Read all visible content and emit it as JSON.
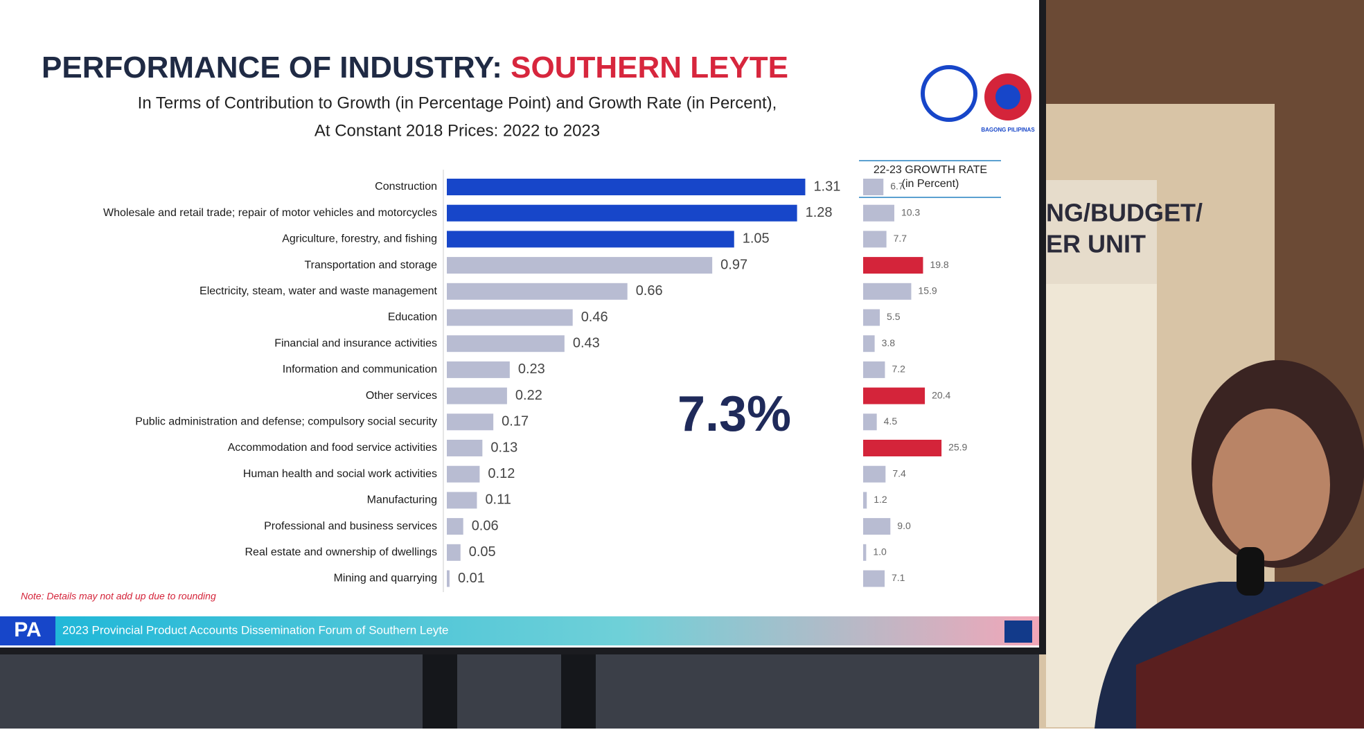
{
  "chart_data": [
    {
      "type": "bar",
      "orientation": "horizontal",
      "title": "PERFORMANCE OF INDUSTRY: ",
      "title_highlight": "SOUTHERN LEYTE",
      "subtitle": [
        "In Terms of Contribution to Growth (in Percentage Point) and Growth Rate (in Percent),",
        "At Constant 2018 Prices: 2022 to 2023"
      ],
      "categories": [
        "Construction",
        "Wholesale and retail trade; repair of motor vehicles and motorcycles",
        "Agriculture, forestry, and fishing",
        "Transportation and storage",
        "Electricity, steam, water and waste management",
        "Education",
        "Financial and insurance activities",
        "Information and communication",
        "Other services",
        "Public administration and defense; compulsory social security",
        "Accommodation and food service activities",
        "Human health and social work activities",
        "Manufacturing",
        "Professional and business services",
        "Real estate and ownership of dwellings",
        "Mining and quarrying"
      ],
      "values": [
        1.31,
        1.28,
        1.05,
        0.97,
        0.66,
        0.46,
        0.43,
        0.23,
        0.22,
        0.17,
        0.13,
        0.12,
        0.11,
        0.06,
        0.05,
        0.01
      ],
      "colors": [
        "#1746c9",
        "#1746c9",
        "#1746c9",
        "#b8bcd2",
        "#b8bcd2",
        "#b8bcd2",
        "#b8bcd2",
        "#b8bcd2",
        "#b8bcd2",
        "#b8bcd2",
        "#b8bcd2",
        "#b8bcd2",
        "#b8bcd2",
        "#b8bcd2",
        "#b8bcd2",
        "#b8bcd2"
      ],
      "xlim": [
        0,
        1.4
      ],
      "annotation": "7.3%",
      "note": "Note: Details may not add up due to rounding"
    },
    {
      "type": "bar",
      "orientation": "horizontal",
      "title": "22-23 GROWTH RATE",
      "subtitle": "(in Percent)",
      "values": [
        6.7,
        10.3,
        7.7,
        19.8,
        15.9,
        5.5,
        3.8,
        7.2,
        20.4,
        4.5,
        25.9,
        7.4,
        1.2,
        9.0,
        1.0,
        7.1
      ],
      "value_labels": [
        "6.7",
        "10.3",
        "7.7",
        "19.8",
        "15.9",
        "5.5",
        "3.8",
        "7.2",
        "20.4",
        "4.5",
        "25.9",
        "7.4",
        "1.2",
        "9.0",
        "1.0",
        "7.1"
      ],
      "colors": [
        "#b8bcd2",
        "#b8bcd2",
        "#b8bcd2",
        "#d4243a",
        "#b8bcd2",
        "#b8bcd2",
        "#b8bcd2",
        "#b8bcd2",
        "#d4243a",
        "#b8bcd2",
        "#d4243a",
        "#b8bcd2",
        "#b8bcd2",
        "#b8bcd2",
        "#b8bcd2",
        "#b8bcd2"
      ],
      "xlim": [
        0,
        30
      ]
    }
  ],
  "footer": {
    "logo": "PA",
    "text": "2023 Provincial Product Accounts Dissemination Forum of Southern Leyte"
  },
  "logo_caption": "BAGONG PILIPINAS",
  "room_sign": [
    "NG/BUDGET/",
    "ER UNIT"
  ]
}
